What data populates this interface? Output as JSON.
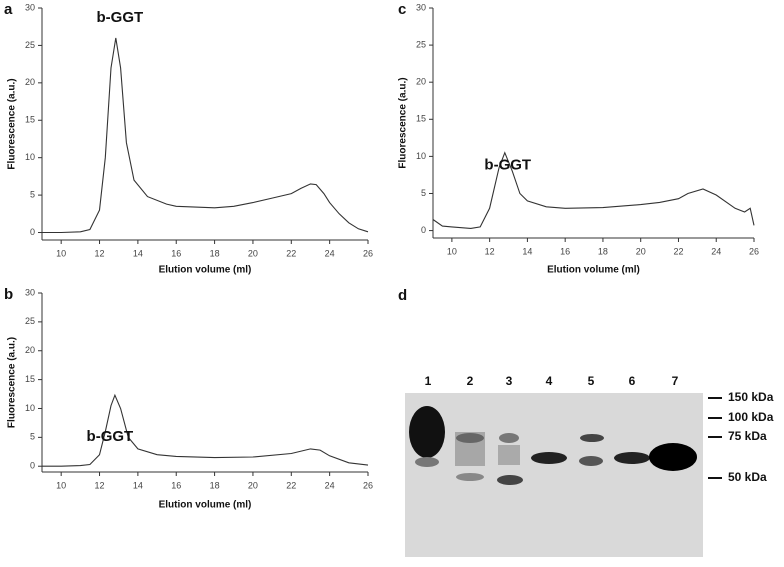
{
  "chart_data": [
    {
      "type": "line",
      "panel_label": "a",
      "xlabel": "Elution volume (ml)",
      "ylabel": "Fluorescence (a.u.)",
      "xlim": [
        9,
        26
      ],
      "ylim": [
        -1,
        30
      ],
      "xticks": [
        10,
        12,
        14,
        16,
        18,
        20,
        22,
        24,
        26
      ],
      "yticks": [
        0,
        5,
        10,
        15,
        20,
        25,
        30
      ],
      "color": "#333333",
      "annotations": [
        {
          "text": "b-GGT"
        }
      ],
      "x": [
        9,
        10,
        11,
        11.5,
        12,
        12.3,
        12.6,
        12.85,
        13.1,
        13.4,
        13.8,
        14.5,
        15.5,
        16,
        17,
        18,
        19,
        20,
        21,
        22,
        22.5,
        23,
        23.3,
        23.7,
        24,
        24.5,
        25,
        25.5,
        26
      ],
      "values": [
        0,
        0,
        0.1,
        0.4,
        3,
        10,
        22,
        26,
        22,
        12,
        7,
        4.8,
        3.8,
        3.5,
        3.4,
        3.3,
        3.5,
        4,
        4.6,
        5.2,
        5.9,
        6.5,
        6.4,
        5.2,
        4,
        2.5,
        1.3,
        0.5,
        0.1
      ]
    },
    {
      "type": "line",
      "panel_label": "b",
      "xlabel": "Elution volume (ml)",
      "ylabel": "Fluorescence (a.u.)",
      "xlim": [
        9,
        26
      ],
      "ylim": [
        -1,
        30
      ],
      "xticks": [
        10,
        12,
        14,
        16,
        18,
        20,
        22,
        24,
        26
      ],
      "yticks": [
        0,
        5,
        10,
        15,
        20,
        25,
        30
      ],
      "color": "#333333",
      "annotations": [
        {
          "text": "b-GGT"
        }
      ],
      "x": [
        9,
        10,
        11,
        11.5,
        12,
        12.3,
        12.6,
        12.8,
        13.1,
        13.5,
        14,
        15,
        16,
        18,
        20,
        22,
        23,
        23.5,
        24,
        25,
        26
      ],
      "values": [
        0,
        0,
        0.1,
        0.3,
        2,
        6,
        10.5,
        12.3,
        10,
        5,
        3,
        2,
        1.7,
        1.5,
        1.6,
        2.2,
        3,
        2.8,
        1.8,
        0.6,
        0.2
      ]
    },
    {
      "type": "line",
      "panel_label": "c",
      "xlabel": "Elution volume (ml)",
      "ylabel": "Fluorescence (a.u.)",
      "xlim": [
        9,
        26
      ],
      "ylim": [
        -1,
        30
      ],
      "xticks": [
        10,
        12,
        14,
        16,
        18,
        20,
        22,
        24,
        26
      ],
      "yticks": [
        0,
        5,
        10,
        15,
        20,
        25,
        30
      ],
      "color": "#333333",
      "annotations": [
        {
          "text": "b-GGT"
        }
      ],
      "x": [
        9,
        9.5,
        10,
        11,
        11.5,
        12,
        12.5,
        12.8,
        13.2,
        13.6,
        14,
        15,
        16,
        18,
        19,
        20,
        21,
        22,
        22.5,
        23.3,
        24,
        25,
        25.5,
        25.8,
        26
      ],
      "values": [
        1.5,
        0.6,
        0.5,
        0.3,
        0.5,
        3,
        8.5,
        10.5,
        8,
        5,
        4,
        3.2,
        3,
        3.1,
        3.3,
        3.5,
        3.8,
        4.3,
        5,
        5.6,
        4.8,
        3,
        2.5,
        3,
        0.7
      ]
    }
  ],
  "gel": {
    "panel_label": "d",
    "lanes": [
      "1",
      "2",
      "3",
      "4",
      "5",
      "6",
      "7"
    ],
    "markers": [
      "150 kDa",
      "100 kDa",
      "75 kDa",
      "50 kDa"
    ]
  }
}
